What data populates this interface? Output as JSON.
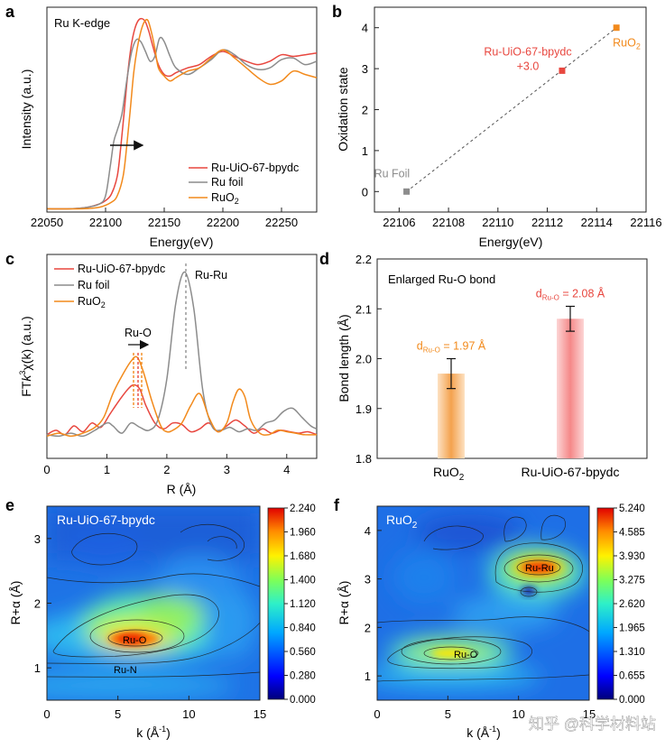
{
  "colors": {
    "red": "#e8473f",
    "gray": "#8c8c8c",
    "orange": "#f28a1c",
    "axis": "#222222"
  },
  "chart_data": [
    {
      "panel": "a",
      "type": "line",
      "title": "Ru K-edge",
      "xlabel": "Energy(eV)",
      "ylabel": "Intensity (a.u.)",
      "xlim": [
        22050,
        22280
      ],
      "ylim": [
        0,
        1.25
      ],
      "xticks": [
        "22050",
        "22100",
        "22150",
        "22200",
        "22250"
      ],
      "xtick_values": [
        22050,
        22100,
        22150,
        22200,
        22250
      ],
      "series": [
        {
          "name": "Ru-UiO-67-bpydc",
          "color": "#e8473f",
          "x": [
            22050,
            22070,
            22085,
            22095,
            22100,
            22105,
            22110,
            22113,
            22116,
            22119,
            22122,
            22125,
            22128,
            22131,
            22134,
            22137,
            22140,
            22145,
            22150,
            22155,
            22160,
            22170,
            22180,
            22190,
            22200,
            22210,
            22220,
            22230,
            22240,
            22250,
            22260,
            22270,
            22280
          ],
          "y": [
            0.02,
            0.02,
            0.03,
            0.05,
            0.07,
            0.11,
            0.22,
            0.4,
            0.62,
            0.85,
            1.02,
            1.12,
            1.17,
            1.18,
            1.16,
            1.1,
            1.02,
            0.9,
            0.84,
            0.83,
            0.85,
            0.88,
            0.9,
            0.95,
            0.98,
            0.95,
            0.92,
            0.9,
            0.92,
            0.96,
            0.95,
            0.96,
            0.97
          ]
        },
        {
          "name": "Ru foil",
          "color": "#8c8c8c",
          "x": [
            22050,
            22070,
            22085,
            22095,
            22100,
            22104,
            22107,
            22110,
            22114,
            22118,
            22122,
            22126,
            22130,
            22134,
            22138,
            22142,
            22146,
            22150,
            22155,
            22160,
            22170,
            22180,
            22190,
            22200,
            22210,
            22220,
            22230,
            22240,
            22250,
            22260,
            22270,
            22280
          ],
          "y": [
            0.02,
            0.02,
            0.03,
            0.05,
            0.1,
            0.28,
            0.43,
            0.5,
            0.6,
            0.8,
            0.97,
            1.05,
            1.04,
            0.98,
            0.92,
            0.95,
            1.06,
            1.04,
            0.95,
            0.88,
            0.84,
            0.88,
            0.93,
            0.99,
            0.96,
            0.9,
            0.87,
            0.88,
            0.93,
            0.94,
            0.9,
            0.92
          ]
        },
        {
          "name": "RuO2",
          "color": "#f28a1c",
          "x": [
            22050,
            22080,
            22095,
            22105,
            22110,
            22115,
            22118,
            22121,
            22124,
            22127,
            22130,
            22133,
            22136,
            22139,
            22142,
            22145,
            22150,
            22155,
            22160,
            22170,
            22180,
            22190,
            22200,
            22210,
            22220,
            22230,
            22240,
            22250,
            22260,
            22270,
            22280
          ],
          "y": [
            0.02,
            0.02,
            0.03,
            0.06,
            0.1,
            0.22,
            0.4,
            0.62,
            0.85,
            1.0,
            1.1,
            1.16,
            1.17,
            1.1,
            1.0,
            0.88,
            0.83,
            0.8,
            0.82,
            0.86,
            0.88,
            0.94,
            0.99,
            0.94,
            0.88,
            0.82,
            0.78,
            0.8,
            0.86,
            0.84,
            0.82
          ]
        }
      ],
      "legend": [
        "Ru-UiO-67-bpydc",
        "Ru foil",
        "RuO",
        "2"
      ]
    },
    {
      "panel": "b",
      "type": "scatter",
      "xlabel": "Energy(eV)",
      "ylabel": "Oxidation state",
      "xlim": [
        22105,
        22116
      ],
      "ylim": [
        -0.5,
        4.5
      ],
      "xticks": [
        "22106",
        "22108",
        "22110",
        "22112",
        "22114",
        "22116"
      ],
      "xtick_values": [
        22106,
        22108,
        22110,
        22112,
        22114,
        22116
      ],
      "yticks": [
        "0",
        "1",
        "2",
        "3",
        "4"
      ],
      "ytick_values": [
        0,
        1,
        2,
        3,
        4
      ],
      "points": [
        {
          "name": "Ru Foil",
          "x": 22106.3,
          "y": 0,
          "color": "#8c8c8c"
        },
        {
          "name": "Ru-UiO-67-bpydc",
          "x": 22112.6,
          "y": 2.95,
          "color": "#e8473f",
          "annotation": "+3.0"
        },
        {
          "name": "RuO",
          "sub": "2",
          "x": 22114.8,
          "y": 4.0,
          "color": "#f28a1c"
        }
      ]
    },
    {
      "panel": "c",
      "type": "line",
      "xlabel": "R (Å)",
      "ylabel_pre": "FT",
      "ylabel_k": "k",
      "ylabel_sup": "3",
      "ylabel_post": "χ(k) (a.u.)",
      "xlim": [
        0,
        4.5
      ],
      "ylim": [
        0,
        1.25
      ],
      "xticks": [
        "0",
        "1",
        "2",
        "3",
        "4"
      ],
      "xtick_values": [
        0,
        1,
        2,
        3,
        4
      ],
      "annotations": [
        "Ru-O",
        "Ru-Ru"
      ],
      "series": [
        {
          "name": "Ru-UiO-67-bpydc",
          "color": "#e8473f",
          "x": [
            0,
            0.15,
            0.3,
            0.45,
            0.6,
            0.75,
            0.9,
            1.05,
            1.2,
            1.35,
            1.45,
            1.55,
            1.65,
            1.8,
            1.95,
            2.1,
            2.25,
            2.4,
            2.55,
            2.7,
            2.85,
            3.0,
            3.15,
            3.3,
            3.45,
            3.6,
            3.75,
            3.9,
            4.05,
            4.2,
            4.35,
            4.5
          ],
          "y": [
            0.02,
            0.05,
            0.02,
            0.08,
            0.04,
            0.1,
            0.07,
            0.16,
            0.25,
            0.33,
            0.36,
            0.33,
            0.22,
            0.1,
            0.06,
            0.1,
            0.09,
            0.04,
            0.06,
            0.1,
            0.04,
            0.08,
            0.12,
            0.08,
            0.03,
            0.06,
            0.03,
            0.05,
            0.04,
            0.03,
            0.04,
            0.02
          ]
        },
        {
          "name": "Ru foil",
          "color": "#8c8c8c",
          "x": [
            0,
            0.2,
            0.4,
            0.6,
            0.8,
            1.0,
            1.1,
            1.25,
            1.4,
            1.55,
            1.7,
            1.85,
            2.0,
            2.15,
            2.3,
            2.45,
            2.6,
            2.75,
            2.9,
            3.05,
            3.2,
            3.35,
            3.5,
            3.65,
            3.8,
            3.95,
            4.1,
            4.25,
            4.4,
            4.5
          ],
          "y": [
            0.02,
            0.01,
            0.03,
            0.01,
            0.05,
            0.1,
            0.08,
            0.03,
            0.1,
            0.07,
            0.05,
            0.12,
            0.4,
            0.92,
            1.13,
            0.88,
            0.32,
            0.08,
            0.05,
            0.07,
            0.04,
            0.06,
            0.05,
            0.1,
            0.12,
            0.18,
            0.2,
            0.14,
            0.08,
            0.06
          ]
        },
        {
          "name": "RuO2",
          "color": "#f28a1c",
          "x": [
            0,
            0.2,
            0.4,
            0.6,
            0.8,
            0.95,
            1.1,
            1.25,
            1.4,
            1.5,
            1.6,
            1.75,
            1.9,
            2.0,
            2.1,
            2.25,
            2.4,
            2.55,
            2.7,
            2.85,
            3.0,
            3.1,
            3.2,
            3.3,
            3.4,
            3.55,
            3.7,
            3.85,
            4.0,
            4.15,
            4.3,
            4.5
          ],
          "y": [
            0.01,
            0.03,
            0.01,
            0.03,
            0.07,
            0.14,
            0.3,
            0.42,
            0.52,
            0.55,
            0.46,
            0.25,
            0.08,
            0.04,
            0.05,
            0.1,
            0.22,
            0.3,
            0.14,
            0.04,
            0.1,
            0.24,
            0.33,
            0.28,
            0.12,
            0.03,
            0.02,
            0.05,
            0.04,
            0.03,
            0.02,
            0.02
          ]
        }
      ],
      "legend": [
        "Ru-UiO-67-bpydc",
        "Ru foil",
        "RuO",
        "2"
      ]
    },
    {
      "panel": "d",
      "type": "bar",
      "title": "Enlarged Ru-O bond",
      "ylabel": "Bond length (Å)",
      "ylim": [
        1.8,
        2.2
      ],
      "yticks": [
        "1.8",
        "1.9",
        "2.0",
        "2.1",
        "2.2"
      ],
      "ytick_values": [
        1.8,
        1.9,
        2.0,
        2.1,
        2.2
      ],
      "categories": [
        "RuO",
        "Ru-UiO-67-bpydc"
      ],
      "category_sub": "2",
      "values": [
        1.97,
        2.08
      ],
      "errors": [
        0.03,
        0.025
      ],
      "bar_colors": [
        "#f4a24e",
        "#f58888"
      ],
      "labels": [
        {
          "pre": "d",
          "sub": "Ru-O",
          "post": " = 1.97 Å",
          "color": "#f28a1c"
        },
        {
          "pre": "d",
          "sub": "Ru-O",
          "post": " = 2.08 Å",
          "color": "#e8473f"
        }
      ]
    },
    {
      "panel": "e",
      "type": "heatmap",
      "title": "Ru-UiO-67-bpydc",
      "xlabel": "k (Å",
      "xlabel_sup": "-1",
      "ylabel": "R+α (Å)",
      "xlim": [
        0,
        15
      ],
      "ylim": [
        0.5,
        3.5
      ],
      "xticks": [
        "0",
        "5",
        "10",
        "15"
      ],
      "xtick_values": [
        0,
        5,
        10,
        15
      ],
      "yticks": [
        "1",
        "2",
        "3"
      ],
      "ytick_values": [
        1,
        2,
        3
      ],
      "features": [
        {
          "label": "Ru-O",
          "k": 6.0,
          "r": 1.5,
          "amp": 2.24
        },
        {
          "label": "Ru-N",
          "k": 5.7,
          "r": 1.0
        }
      ],
      "colorbar": [
        "2.240",
        "1.960",
        "1.680",
        "1.400",
        "1.120",
        "0.840",
        "0.560",
        "0.280",
        "0.000"
      ],
      "colorbar_values": [
        2.24,
        1.96,
        1.68,
        1.4,
        1.12,
        0.84,
        0.56,
        0.28,
        0.0
      ]
    },
    {
      "panel": "f",
      "type": "heatmap",
      "title": "RuO",
      "title_sub": "2",
      "xlabel": "k (Å",
      "xlabel_sup": "-1",
      "ylabel": "R+α (Å)",
      "xlim": [
        0,
        15
      ],
      "ylim": [
        0.5,
        4.5
      ],
      "xticks": [
        "0",
        "5",
        "10",
        "15"
      ],
      "xtick_values": [
        0,
        5,
        10,
        15
      ],
      "yticks": [
        "1",
        "2",
        "3",
        "4"
      ],
      "ytick_values": [
        1,
        2,
        3,
        4
      ],
      "features": [
        {
          "label": "Ru-O",
          "k": 6.5,
          "r": 1.45,
          "amp": 3.2
        },
        {
          "label": "Ru-Ru",
          "k": 11.3,
          "r": 3.25,
          "amp": 5.24
        }
      ],
      "colorbar": [
        "5.240",
        "4.585",
        "3.930",
        "3.275",
        "2.620",
        "1.965",
        "1.310",
        "0.655",
        "0.000"
      ],
      "colorbar_values": [
        5.24,
        4.585,
        3.93,
        3.275,
        2.62,
        1.965,
        1.31,
        0.655,
        0.0
      ]
    }
  ],
  "panel_letters": [
    "a",
    "b",
    "c",
    "d",
    "e",
    "f"
  ],
  "watermark": "知乎 @科学材料站"
}
